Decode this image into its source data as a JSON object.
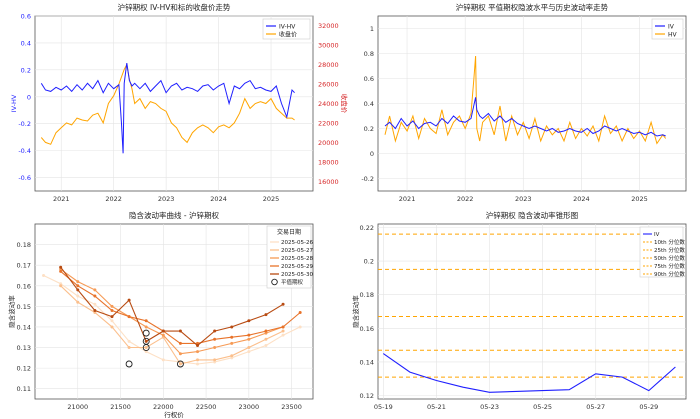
{
  "chart_data": [
    {
      "type": "line",
      "title": "沪锌期权 IV-HV和标的收盘价走势",
      "ylabel": "IV-HV",
      "y2label": "收盘价",
      "x_ticks": [
        "2021",
        "2022",
        "2023",
        "2024",
        "2025"
      ],
      "y_ticks": [
        -0.6,
        -0.4,
        -0.2,
        0.0,
        0.2,
        0.4,
        0.6
      ],
      "y2_ticks": [
        16000,
        18000,
        20000,
        22000,
        24000,
        26000,
        28000,
        30000,
        32000
      ],
      "ylim": [
        -0.7,
        0.6
      ],
      "y2lim": [
        15000,
        33000
      ],
      "xlim": [
        2020.5,
        2025.8
      ],
      "grid": true,
      "legend": "top-right",
      "colors": {
        "iv_hv": "#1f1fff",
        "close": "#ffa500",
        "axis2": "#d62728"
      },
      "series": [
        {
          "name": "IV-HV",
          "axis": "left",
          "x": [
            2020.62,
            2020.7,
            2020.8,
            2020.9,
            2021.0,
            2021.1,
            2021.2,
            2021.3,
            2021.4,
            2021.5,
            2021.6,
            2021.7,
            2021.8,
            2021.9,
            2022.0,
            2022.1,
            2022.15,
            2022.18,
            2022.2,
            2022.25,
            2022.3,
            2022.35,
            2022.4,
            2022.5,
            2022.6,
            2022.7,
            2022.8,
            2022.9,
            2023.0,
            2023.1,
            2023.2,
            2023.3,
            2023.4,
            2023.5,
            2023.6,
            2023.7,
            2023.8,
            2023.9,
            2024.0,
            2024.1,
            2024.2,
            2024.3,
            2024.4,
            2024.5,
            2024.6,
            2024.7,
            2024.8,
            2024.9,
            2025.0,
            2025.1,
            2025.2,
            2025.3,
            2025.4,
            2025.45
          ],
          "y": [
            0.1,
            0.05,
            0.04,
            0.07,
            0.05,
            0.08,
            0.04,
            0.09,
            0.05,
            0.1,
            0.06,
            0.12,
            0.03,
            0.1,
            0.06,
            0.09,
            -0.2,
            -0.42,
            0.1,
            0.25,
            0.12,
            0.08,
            0.1,
            0.06,
            0.1,
            0.04,
            0.08,
            0.12,
            0.03,
            0.08,
            0.1,
            0.05,
            0.07,
            0.06,
            0.04,
            0.08,
            0.09,
            0.05,
            0.08,
            0.1,
            -0.05,
            0.08,
            0.06,
            0.1,
            0.12,
            0.06,
            0.07,
            0.05,
            0.04,
            0.08,
            -0.05,
            -0.15,
            0.05,
            0.03
          ]
        },
        {
          "name": "收盘价",
          "axis": "right",
          "x": [
            2020.62,
            2020.7,
            2020.8,
            2020.9,
            2021.0,
            2021.1,
            2021.2,
            2021.3,
            2021.4,
            2021.5,
            2021.6,
            2021.7,
            2021.8,
            2021.9,
            2022.0,
            2022.1,
            2022.2,
            2022.25,
            2022.3,
            2022.35,
            2022.4,
            2022.5,
            2022.6,
            2022.7,
            2022.8,
            2022.9,
            2023.0,
            2023.1,
            2023.2,
            2023.3,
            2023.4,
            2023.5,
            2023.6,
            2023.7,
            2023.8,
            2023.9,
            2024.0,
            2024.1,
            2024.2,
            2024.3,
            2024.4,
            2024.5,
            2024.6,
            2024.7,
            2024.8,
            2024.9,
            2025.0,
            2025.1,
            2025.2,
            2025.3,
            2025.4,
            2025.45
          ],
          "y": [
            20500,
            20000,
            19800,
            21000,
            21500,
            22000,
            21800,
            22500,
            22300,
            22200,
            22800,
            23000,
            22000,
            24000,
            24800,
            26000,
            27500,
            28000,
            26500,
            25500,
            24000,
            24500,
            23500,
            24200,
            24000,
            23500,
            23200,
            22000,
            21500,
            20500,
            20000,
            21000,
            21500,
            21800,
            21500,
            21000,
            21600,
            21800,
            21500,
            22000,
            23000,
            24500,
            23500,
            24000,
            24200,
            24000,
            24500,
            23500,
            23000,
            22500,
            22500,
            22300
          ]
        }
      ]
    },
    {
      "type": "line",
      "title": "沪锌期权 平值期权隐波水平与历史波动率走势",
      "x_ticks": [
        "2021",
        "2022",
        "2023",
        "2024",
        "2025"
      ],
      "y_ticks": [
        -0.2,
        0.0,
        0.2,
        0.4,
        0.6,
        0.8,
        1.0
      ],
      "ylim": [
        -0.3,
        1.1
      ],
      "xlim": [
        2020.5,
        2025.8
      ],
      "grid": true,
      "legend": "top-right",
      "colors": {
        "iv": "#1f1fff",
        "hv": "#ffa500"
      },
      "series": [
        {
          "name": "IV",
          "x": [
            2020.62,
            2020.7,
            2020.8,
            2020.9,
            2021.0,
            2021.1,
            2021.2,
            2021.3,
            2021.4,
            2021.5,
            2021.6,
            2021.7,
            2021.8,
            2021.9,
            2022.0,
            2022.1,
            2022.18,
            2022.2,
            2022.25,
            2022.3,
            2022.4,
            2022.5,
            2022.6,
            2022.7,
            2022.8,
            2022.9,
            2023.0,
            2023.1,
            2023.2,
            2023.3,
            2023.4,
            2023.5,
            2023.6,
            2023.7,
            2023.8,
            2023.9,
            2024.0,
            2024.1,
            2024.2,
            2024.3,
            2024.4,
            2024.5,
            2024.6,
            2024.7,
            2024.8,
            2024.9,
            2025.0,
            2025.1,
            2025.2,
            2025.3,
            2025.4,
            2025.45
          ],
          "y": [
            0.22,
            0.25,
            0.2,
            0.28,
            0.22,
            0.26,
            0.2,
            0.24,
            0.25,
            0.22,
            0.28,
            0.24,
            0.3,
            0.26,
            0.25,
            0.28,
            0.45,
            0.35,
            0.3,
            0.28,
            0.32,
            0.26,
            0.3,
            0.25,
            0.28,
            0.24,
            0.22,
            0.2,
            0.22,
            0.2,
            0.18,
            0.2,
            0.17,
            0.18,
            0.2,
            0.18,
            0.17,
            0.2,
            0.16,
            0.18,
            0.22,
            0.2,
            0.18,
            0.2,
            0.18,
            0.16,
            0.17,
            0.15,
            0.17,
            0.14,
            0.15,
            0.14
          ]
        },
        {
          "name": "HV",
          "x": [
            2020.62,
            2020.7,
            2020.8,
            2020.9,
            2021.0,
            2021.1,
            2021.2,
            2021.3,
            2021.4,
            2021.5,
            2021.6,
            2021.7,
            2021.8,
            2021.9,
            2022.0,
            2022.1,
            2022.15,
            2022.18,
            2022.2,
            2022.25,
            2022.3,
            2022.4,
            2022.5,
            2022.6,
            2022.7,
            2022.8,
            2022.9,
            2023.0,
            2023.1,
            2023.2,
            2023.3,
            2023.4,
            2023.5,
            2023.6,
            2023.7,
            2023.8,
            2023.9,
            2024.0,
            2024.1,
            2024.2,
            2024.3,
            2024.4,
            2024.5,
            2024.6,
            2024.7,
            2024.8,
            2024.9,
            2025.0,
            2025.1,
            2025.2,
            2025.3,
            2025.4,
            2025.45
          ],
          "y": [
            0.15,
            0.3,
            0.1,
            0.25,
            0.18,
            0.3,
            0.12,
            0.28,
            0.2,
            0.16,
            0.35,
            0.15,
            0.25,
            0.3,
            0.2,
            0.32,
            0.6,
            0.78,
            0.2,
            0.1,
            0.25,
            0.3,
            0.15,
            0.38,
            0.1,
            0.3,
            0.15,
            0.25,
            0.12,
            0.28,
            0.1,
            0.22,
            0.15,
            0.2,
            0.1,
            0.25,
            0.12,
            0.2,
            0.14,
            0.22,
            0.1,
            0.3,
            0.16,
            0.22,
            0.1,
            0.2,
            0.12,
            0.18,
            0.1,
            0.25,
            0.08,
            0.15,
            0.12
          ]
        }
      ]
    },
    {
      "type": "line",
      "title": "隐含波动率曲线 - 沪锌期权",
      "xlabel": "行权价",
      "ylabel": "隐含波动率",
      "x_ticks": [
        21000,
        21500,
        22000,
        22500,
        23000,
        23500
      ],
      "y_ticks": [
        0.11,
        0.12,
        0.13,
        0.14,
        0.15,
        0.16,
        0.17,
        0.18
      ],
      "xlim": [
        20500,
        23750
      ],
      "ylim": [
        0.105,
        0.19
      ],
      "grid": true,
      "legend_title": "交易日期",
      "legend": "top-right",
      "atm_label": "平值期权",
      "series": [
        {
          "name": "2025-05-26",
          "color": "#fde0c5",
          "x": [
            20600,
            20800,
            21000,
            21200,
            21400,
            21600,
            21800,
            22000,
            22200,
            22400,
            22600,
            22800,
            23000,
            23200,
            23400,
            23600
          ],
          "y": [
            0.165,
            0.161,
            0.155,
            0.151,
            0.143,
            0.133,
            0.128,
            0.124,
            0.123,
            0.122,
            0.123,
            0.125,
            0.128,
            0.131,
            0.136,
            0.14
          ]
        },
        {
          "name": "2025-05-27",
          "color": "#fbbf8c",
          "x": [
            20800,
            21000,
            21200,
            21400,
            21600,
            21800,
            22000,
            22200,
            22400,
            22600,
            22800,
            23000,
            23200,
            23400
          ],
          "y": [
            0.16,
            0.152,
            0.147,
            0.14,
            0.13,
            0.13,
            0.135,
            0.122,
            0.124,
            0.124,
            0.126,
            0.13,
            0.134,
            0.138
          ]
        },
        {
          "name": "2025-05-28",
          "color": "#f69a55",
          "x": [
            20800,
            21000,
            21200,
            21400,
            21600,
            21800,
            22000,
            22200,
            22400,
            22600,
            22800,
            23000,
            23200,
            23400
          ],
          "y": [
            0.168,
            0.162,
            0.158,
            0.15,
            0.145,
            0.14,
            0.136,
            0.127,
            0.128,
            0.13,
            0.132,
            0.134,
            0.137,
            0.14
          ]
        },
        {
          "name": "2025-05-29",
          "color": "#e8732a",
          "x": [
            20800,
            21000,
            21200,
            21400,
            21600,
            21800,
            22000,
            22200,
            22400,
            22600,
            22800,
            23000,
            23200,
            23400,
            23600
          ],
          "y": [
            0.167,
            0.16,
            0.155,
            0.148,
            0.145,
            0.143,
            0.138,
            0.132,
            0.132,
            0.134,
            0.135,
            0.136,
            0.138,
            0.14,
            0.147
          ]
        },
        {
          "name": "2025-05-30",
          "color": "#b84b12",
          "x": [
            20800,
            21000,
            21200,
            21400,
            21600,
            21800,
            22000,
            22200,
            22400,
            22600,
            22800,
            23000,
            23200,
            23400
          ],
          "y": [
            0.169,
            0.158,
            0.148,
            0.145,
            0.153,
            0.133,
            0.138,
            0.138,
            0.131,
            0.138,
            0.14,
            0.143,
            0.146,
            0.151
          ]
        }
      ],
      "atm_points": [
        {
          "x": 21600,
          "y": 0.122
        },
        {
          "x": 21800,
          "y": 0.13
        },
        {
          "x": 21800,
          "y": 0.133
        },
        {
          "x": 21800,
          "y": 0.137
        },
        {
          "x": 22200,
          "y": 0.122
        }
      ]
    },
    {
      "type": "line",
      "title": "沪锌期权 隐含波动率锥形图",
      "ylabel": "隐含波动率",
      "x_ticks": [
        "05-19",
        "05-21",
        "05-23",
        "05-25",
        "05-27",
        "05-29"
      ],
      "y_ticks": [
        0.12,
        0.14,
        0.16,
        0.18,
        0.2,
        0.22
      ],
      "xlim": [
        18.8,
        30.4
      ],
      "ylim": [
        0.118,
        0.222
      ],
      "grid": true,
      "legend": "top-right",
      "colors": {
        "iv": "#1f1fff",
        "percentile": "#ffa500"
      },
      "series": [
        {
          "name": "IV",
          "x": [
            19,
            20,
            21,
            22,
            23,
            24,
            25,
            26,
            27,
            28,
            29,
            30
          ],
          "y": [
            0.145,
            0.134,
            0.129,
            0.125,
            0.122,
            0.1225,
            0.123,
            0.1235,
            0.133,
            0.131,
            0.123,
            0.137
          ]
        }
      ],
      "percentiles": [
        {
          "name": "10th 分位数",
          "y": 0.131
        },
        {
          "name": "25th 分位数",
          "y": 0.147
        },
        {
          "name": "50th 分位数",
          "y": 0.167
        },
        {
          "name": "75th 分位数",
          "y": 0.195
        },
        {
          "name": "90th 分位数",
          "y": 0.216
        }
      ]
    }
  ]
}
